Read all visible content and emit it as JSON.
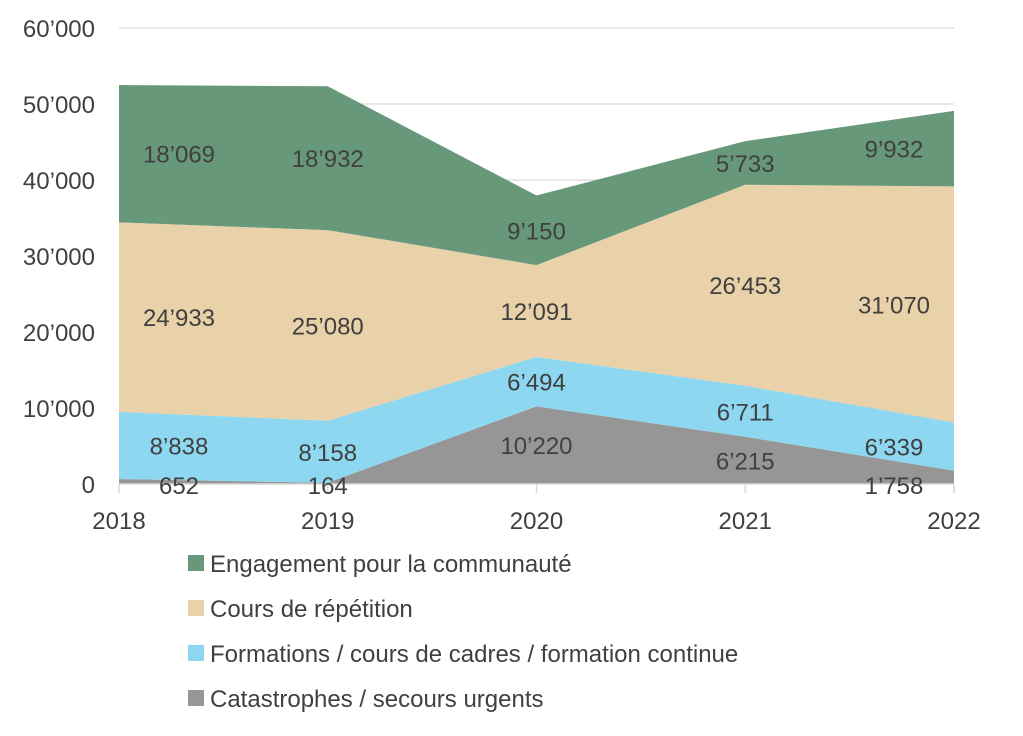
{
  "chart_data": {
    "type": "area",
    "stacked": true,
    "x": [
      "2018",
      "2019",
      "2020",
      "2021",
      "2022"
    ],
    "ylim": [
      0,
      60000
    ],
    "yticks": [
      0,
      10000,
      20000,
      30000,
      40000,
      50000,
      60000
    ],
    "ytick_labels": [
      "0",
      "10’000",
      "20’000",
      "30’000",
      "40’000",
      "50’000",
      "60’000"
    ],
    "grid": true,
    "legend_position": "bottom",
    "series": [
      {
        "name": "Catastrophes / secours urgents",
        "color": "#969696",
        "values": [
          652,
          164,
          10220,
          6215,
          1758
        ],
        "labels": [
          "652",
          "164",
          "10’220",
          "6’215",
          "1’758"
        ]
      },
      {
        "name": "Formations / cours de cadres / formation continue",
        "color": "#8dd7f0",
        "values": [
          8838,
          8158,
          6494,
          6711,
          6339
        ],
        "labels": [
          "8’838",
          "8’158",
          "6’494",
          "6’711",
          "6’339"
        ]
      },
      {
        "name": "Cours de répétition",
        "color": "#e9d1a9",
        "values": [
          24933,
          25080,
          12091,
          26453,
          31070
        ],
        "labels": [
          "24’933",
          "25’080",
          "12’091",
          "26’453",
          "31’070"
        ]
      },
      {
        "name": "Engagement pour la communauté",
        "color": "#67987a",
        "values": [
          18069,
          18932,
          9150,
          5733,
          9932
        ],
        "labels": [
          "18’069",
          "18’932",
          "9’150",
          "5’733",
          "9’932"
        ]
      }
    ],
    "legend_order": [
      3,
      2,
      1,
      0
    ]
  }
}
